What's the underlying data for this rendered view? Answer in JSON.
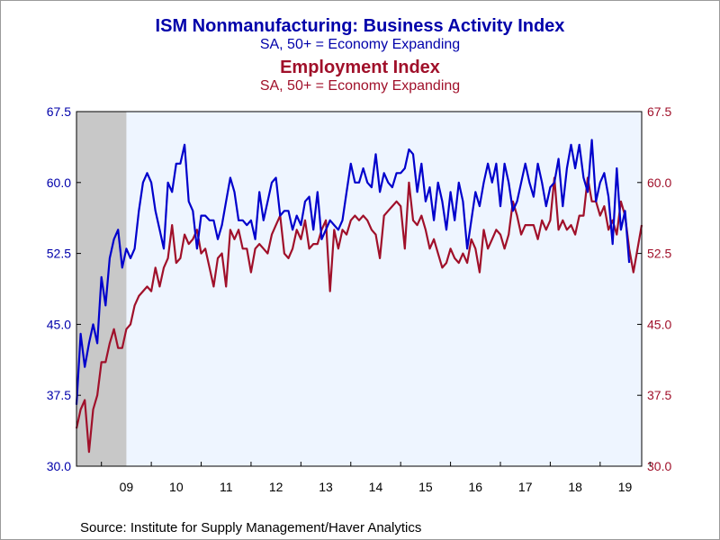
{
  "title": "ISM Nonmanufacturing: Business Activity Index",
  "subtitle": "SA, 50+ = Economy Expanding",
  "title2": "Employment Index",
  "subtitle2": "SA, 50+ = Economy Expanding",
  "source": "Source:  Institute for Supply Management/Haver Analytics",
  "colors": {
    "series1": "#0000cc",
    "series2": "#a0102a",
    "plot_bg": "#eef5ff",
    "recession": "#c8c8c8"
  },
  "chart_data": {
    "type": "line",
    "x_start": "2008-07",
    "x_end": "2019-11",
    "x_tick_labels": [
      "09",
      "10",
      "11",
      "12",
      "13",
      "14",
      "15",
      "16",
      "17",
      "18",
      "19"
    ],
    "y_tick_labels": [
      "67.5",
      "60.0",
      "52.5",
      "45.0",
      "37.5",
      "30.0"
    ],
    "ylim": [
      30,
      67.5
    ],
    "recession_shade": {
      "start": "2008-07",
      "end": "2009-06"
    },
    "series": [
      {
        "name": "Business Activity Index",
        "axis": "left",
        "values": [
          36.5,
          44.0,
          40.5,
          43.0,
          45.0,
          43.0,
          50.0,
          47.0,
          52.0,
          54.0,
          55.0,
          51.0,
          53.0,
          52.0,
          53.0,
          57.0,
          60.0,
          61.0,
          60.0,
          57.0,
          55.0,
          53.0,
          60.0,
          59.0,
          62.0,
          62.0,
          64.0,
          58.0,
          57.0,
          53.0,
          56.5,
          56.5,
          56.0,
          56.0,
          54.0,
          55.5,
          58.0,
          60.5,
          59.0,
          56.0,
          56.0,
          55.5,
          56.0,
          54.0,
          59.0,
          56.0,
          58.0,
          60.0,
          60.5,
          56.5,
          57.0,
          57.0,
          55.0,
          56.5,
          55.5,
          58.0,
          58.5,
          55.0,
          59.0,
          54.0,
          55.0,
          56.0,
          55.5,
          55.0,
          56.0,
          59.0,
          62.0,
          60.0,
          60.0,
          61.5,
          60.0,
          59.5,
          63.0,
          59.0,
          61.0,
          60.0,
          59.5,
          61.0,
          61.0,
          61.5,
          63.5,
          63.0,
          59.0,
          62.0,
          58.0,
          59.5,
          56.0,
          60.0,
          58.0,
          55.0,
          59.0,
          56.0,
          60.0,
          58.0,
          53.0,
          56.0,
          59.0,
          57.5,
          60.0,
          62.0,
          60.0,
          62.0,
          57.5,
          62.0,
          60.0,
          57.0,
          58.0,
          60.0,
          62.0,
          60.0,
          58.5,
          62.0,
          60.0,
          57.5,
          59.5,
          60.0,
          62.5,
          57.5,
          61.5,
          64.0,
          61.5,
          64.0,
          60.5,
          59.0,
          64.5,
          58.0,
          60.0,
          61.0,
          58.5,
          53.5,
          61.5,
          55.0,
          57.0,
          51.5
        ]
      },
      {
        "name": "Employment Index",
        "axis": "right",
        "values": [
          34.0,
          36.0,
          37.0,
          31.5,
          36.0,
          37.5,
          41.0,
          41.0,
          43.0,
          44.5,
          42.5,
          42.5,
          44.5,
          45.0,
          47.0,
          48.0,
          48.5,
          49.0,
          48.5,
          51.0,
          49.0,
          51.0,
          52.0,
          55.5,
          51.5,
          52.0,
          54.5,
          53.5,
          54.0,
          55.0,
          52.5,
          53.0,
          51.0,
          49.0,
          52.0,
          52.5,
          49.0,
          55.0,
          54.0,
          55.0,
          53.0,
          53.0,
          50.5,
          53.0,
          53.5,
          53.0,
          52.5,
          54.5,
          55.5,
          56.5,
          52.5,
          52.0,
          53.0,
          55.0,
          54.0,
          56.0,
          53.0,
          53.5,
          53.5,
          55.0,
          56.0,
          48.5,
          55.0,
          53.0,
          55.0,
          54.5,
          56.0,
          56.5,
          56.0,
          56.5,
          56.0,
          55.0,
          54.5,
          52.0,
          56.5,
          57.0,
          57.5,
          58.0,
          57.5,
          53.0,
          60.0,
          56.0,
          55.5,
          56.5,
          55.0,
          53.0,
          54.0,
          52.5,
          51.0,
          51.5,
          53.0,
          52.0,
          51.5,
          52.5,
          51.5,
          54.0,
          53.0,
          50.5,
          55.0,
          53.0,
          54.0,
          55.0,
          54.5,
          53.0,
          54.5,
          58.0,
          56.5,
          54.5,
          55.5,
          55.5,
          55.5,
          54.0,
          56.0,
          55.0,
          56.0,
          60.5,
          55.0,
          56.0,
          55.0,
          55.5,
          54.5,
          56.5,
          56.5,
          60.5,
          58.0,
          58.0,
          56.5,
          57.5,
          55.0,
          56.0,
          54.5,
          58.0,
          56.5,
          53.0,
          50.5,
          53.0,
          55.5
        ]
      }
    ]
  }
}
